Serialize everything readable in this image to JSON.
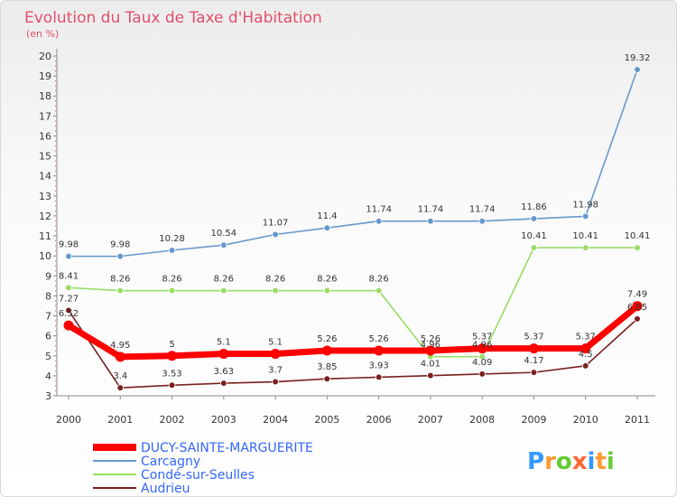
{
  "chart_data": {
    "type": "line",
    "title": "Evolution du Taux de Taxe d'Habitation",
    "unit": "(en %)",
    "x": [
      "2000",
      "2001",
      "2002",
      "2003",
      "2004",
      "2005",
      "2006",
      "2007",
      "2008",
      "2009",
      "2010",
      "2011"
    ],
    "ylim": [
      3,
      20
    ],
    "yticks": [
      3,
      4,
      5,
      6,
      7,
      8,
      9,
      10,
      11,
      12,
      13,
      14,
      15,
      16,
      17,
      18,
      19,
      20
    ],
    "grid": false,
    "legend_position": "bottom-left",
    "series": [
      {
        "name": "DUCY-SAINTE-MARGUERITE",
        "color": "#ff0000",
        "values": [
          6.52,
          4.95,
          5,
          5.1,
          5.1,
          5.26,
          5.26,
          5.26,
          5.37,
          5.37,
          5.37,
          7.49
        ],
        "labels": [
          "6.52",
          "4.95",
          "5",
          "5.1",
          "5.1",
          "5.26",
          "5.26",
          "5.26",
          "5.37",
          "5.37",
          "5.37",
          "7.49"
        ]
      },
      {
        "name": "Carcagny",
        "color": "#6699cc",
        "values": [
          9.98,
          9.98,
          10.28,
          10.54,
          11.07,
          11.4,
          11.74,
          11.74,
          11.74,
          11.86,
          11.98,
          19.32
        ],
        "labels": [
          "9.98",
          "9.98",
          "10.28",
          "10.54",
          "11.07",
          "11.4",
          "11.74",
          "11.74",
          "11.74",
          "11.86",
          "11.98",
          "19.32"
        ]
      },
      {
        "name": "Condé-sur-Seulles",
        "color": "#99dd66",
        "values": [
          8.41,
          8.26,
          8.26,
          8.26,
          8.26,
          8.26,
          8.26,
          4.96,
          4.96,
          10.41,
          10.41,
          10.41
        ],
        "labels": [
          "8.41",
          "8.26",
          "8.26",
          "8.26",
          "8.26",
          "8.26",
          "8.26",
          "4.96",
          "4.96",
          "10.41",
          "10.41",
          "10.41"
        ]
      },
      {
        "name": "Audrieu",
        "color": "#7a1f1f",
        "values": [
          7.27,
          3.4,
          3.53,
          3.63,
          3.7,
          3.85,
          3.93,
          4.01,
          4.09,
          4.17,
          4.5,
          6.85
        ],
        "labels": [
          "7.27",
          "3.4",
          "3.53",
          "3.63",
          "3.7",
          "3.85",
          "3.93",
          "4.01",
          "4.09",
          "4.17",
          "4.5",
          "6.85"
        ]
      }
    ]
  },
  "logo": {
    "text": "Proxiti",
    "colors": [
      "#3399ff",
      "#ff9933",
      "#66cc33",
      "#ff6633",
      "#3399ff",
      "#ff9933",
      "#66cc33"
    ]
  }
}
